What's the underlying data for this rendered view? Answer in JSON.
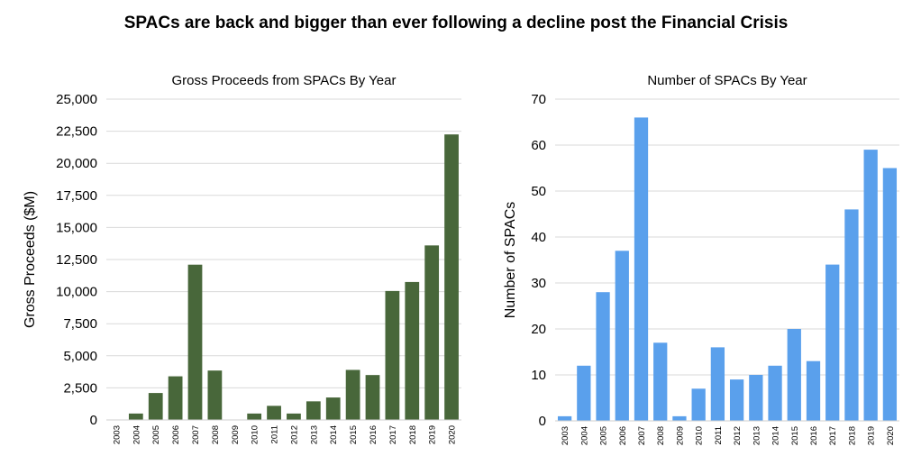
{
  "title": "SPACs are back and bigger than ever following a decline post the Financial Crisis",
  "chart_data": [
    {
      "type": "bar",
      "title": "Gross Proceeds from SPACs By Year",
      "xlabel": "",
      "ylabel": "Gross Proceeds ($M)",
      "categories": [
        "2003",
        "2004",
        "2005",
        "2006",
        "2007",
        "2008",
        "2009",
        "2010",
        "2011",
        "2012",
        "2013",
        "2014",
        "2015",
        "2016",
        "2017",
        "2018",
        "2019",
        "2020"
      ],
      "values": [
        0,
        500,
        2100,
        3400,
        12100,
        3850,
        0,
        500,
        1100,
        500,
        1450,
        1750,
        3900,
        3500,
        10050,
        10750,
        13600,
        22250
      ],
      "ylim": [
        0,
        25000
      ],
      "yticks": [
        0,
        2500,
        5000,
        7500,
        10000,
        12500,
        15000,
        17500,
        20000,
        22500,
        25000
      ],
      "ytick_labels": [
        "0",
        "2,500",
        "5,000",
        "7,500",
        "10,000",
        "12,500",
        "15,000",
        "17,500",
        "20,000",
        "22,500",
        "25,000"
      ],
      "color": "#48673a",
      "grid": true
    },
    {
      "type": "bar",
      "title": "Number of SPACs By Year",
      "xlabel": "",
      "ylabel": "Number of SPACs",
      "categories": [
        "2003",
        "2004",
        "2005",
        "2006",
        "2007",
        "2008",
        "2009",
        "2010",
        "2011",
        "2012",
        "2013",
        "2014",
        "2015",
        "2016",
        "2017",
        "2018",
        "2019",
        "2020"
      ],
      "values": [
        1,
        12,
        28,
        37,
        66,
        17,
        1,
        7,
        16,
        9,
        10,
        12,
        20,
        13,
        34,
        46,
        59,
        55
      ],
      "ylim": [
        0,
        70
      ],
      "yticks": [
        0,
        10,
        20,
        30,
        40,
        50,
        60,
        70
      ],
      "ytick_labels": [
        "0",
        "10",
        "20",
        "30",
        "40",
        "50",
        "60",
        "70"
      ],
      "color": "#5aa0ec",
      "grid": true
    }
  ]
}
